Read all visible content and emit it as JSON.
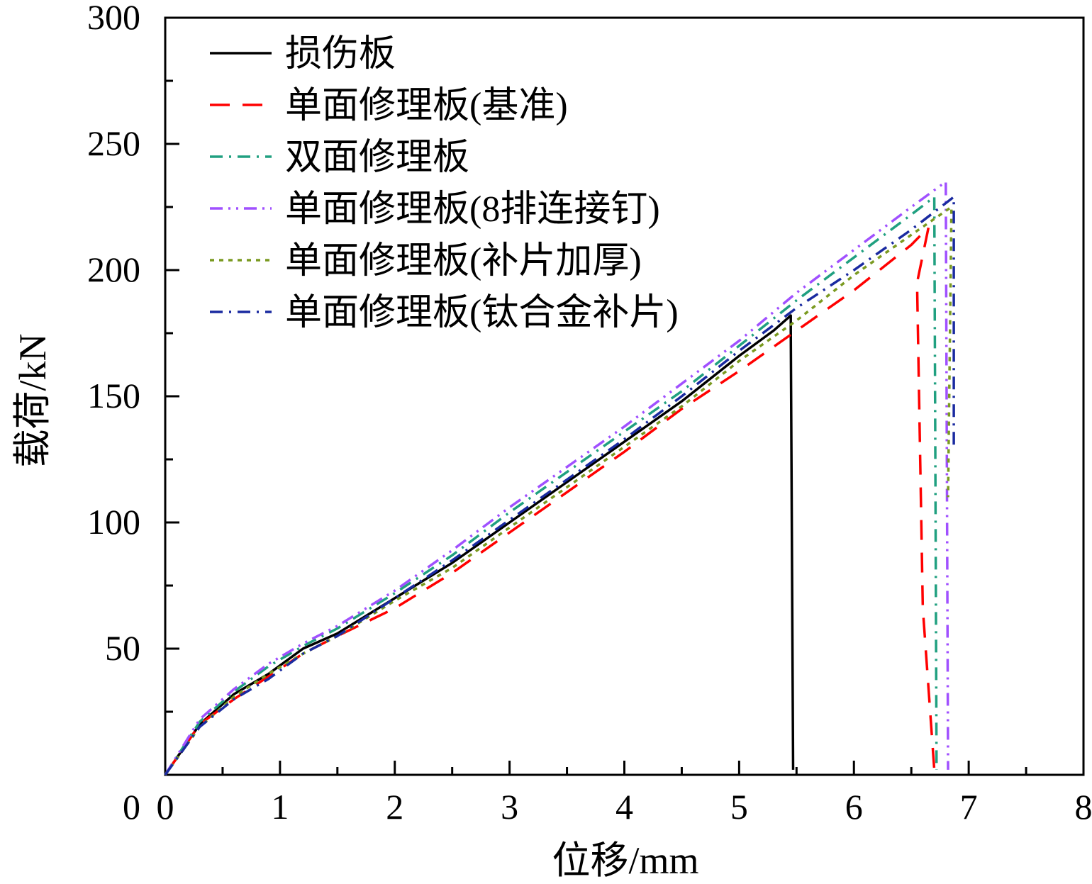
{
  "chart_data": {
    "type": "line",
    "title": "",
    "xlabel": "位移/mm",
    "ylabel": "载荷/kN",
    "xlim": [
      0,
      8
    ],
    "ylim": [
      0,
      300
    ],
    "xticks": [
      0,
      1,
      2,
      3,
      4,
      5,
      6,
      7,
      8
    ],
    "yticks": [
      50,
      100,
      150,
      200,
      250,
      300
    ],
    "x_tick_labels": [
      "0",
      "1",
      "2",
      "3",
      "4",
      "5",
      "6",
      "7",
      "8"
    ],
    "y_tick_labels": [
      "50",
      "100",
      "150",
      "200",
      "250",
      "300"
    ],
    "grid": false,
    "legend_position": "top-left",
    "series": [
      {
        "name": "损伤板",
        "color": "#000000",
        "dash": "solid",
        "x": [
          0,
          0.3,
          0.6,
          0.9,
          1.2,
          1.5,
          2.0,
          2.5,
          3.0,
          3.5,
          4.0,
          4.5,
          5.0,
          5.3,
          5.45,
          5.45,
          5.47
        ],
        "y": [
          0,
          20,
          32,
          40,
          50,
          56,
          70,
          84,
          100,
          116,
          132,
          148,
          166,
          176,
          182,
          176,
          2
        ]
      },
      {
        "name": "单面修理板(基准)",
        "color": "#ff0000",
        "dash": "long-dash",
        "x": [
          0,
          0.3,
          0.6,
          0.9,
          1.2,
          1.5,
          2.0,
          2.5,
          3.0,
          3.5,
          4.0,
          4.5,
          5.0,
          5.5,
          6.0,
          6.5,
          6.65,
          6.55,
          6.6,
          6.7
        ],
        "y": [
          0,
          20,
          30,
          39,
          48,
          55,
          66,
          80,
          96,
          112,
          128,
          145,
          160,
          176,
          192,
          210,
          217,
          195,
          66,
          2
        ]
      },
      {
        "name": "双面修理板",
        "color": "#20a080",
        "dash": "dash-dot",
        "x": [
          0,
          0.3,
          0.6,
          0.9,
          1.2,
          1.5,
          2.0,
          2.5,
          3.0,
          3.5,
          4.0,
          4.5,
          5.0,
          5.5,
          6.0,
          6.5,
          6.7,
          6.72
        ],
        "y": [
          0,
          21,
          33,
          43,
          51,
          58,
          72,
          87,
          104,
          120,
          136,
          152,
          170,
          188,
          205,
          222,
          229,
          2
        ]
      },
      {
        "name": "单面修理板(8排连接钉)",
        "color": "#a050ff",
        "dash": "dash-dot-dot",
        "x": [
          0,
          0.3,
          0.6,
          0.9,
          1.2,
          1.5,
          2.0,
          2.5,
          3.0,
          3.5,
          4.0,
          4.5,
          5.0,
          5.5,
          6.0,
          6.5,
          6.8,
          6.82
        ],
        "y": [
          0,
          22,
          34,
          44,
          52,
          59,
          73,
          89,
          106,
          122,
          138,
          155,
          172,
          191,
          208,
          225,
          235,
          2
        ]
      },
      {
        "name": "单面修理板(补片加厚)",
        "color": "#7a9a20",
        "dash": "dotted",
        "x": [
          0,
          0.3,
          0.6,
          0.9,
          1.2,
          1.5,
          2.0,
          2.5,
          3.0,
          3.5,
          4.0,
          4.5,
          5.0,
          5.5,
          6.0,
          6.5,
          6.85,
          6.82
        ],
        "y": [
          0,
          19,
          31,
          40,
          48,
          55,
          69,
          82,
          98,
          114,
          130,
          146,
          164,
          180,
          198,
          214,
          225,
          110
        ]
      },
      {
        "name": "单面修理板(钛合金补片)",
        "color": "#1a2aa0",
        "dash": "dash-dot",
        "x": [
          0,
          0.3,
          0.6,
          0.9,
          1.2,
          1.5,
          2.0,
          2.5,
          3.0,
          3.5,
          4.0,
          4.5,
          5.0,
          5.5,
          6.0,
          6.5,
          6.87,
          6.87,
          6.9
        ],
        "y": [
          0,
          19,
          30,
          38,
          48,
          55,
          70,
          85,
          101,
          117,
          133,
          150,
          168,
          185,
          200,
          216,
          229,
          130,
          130
        ]
      }
    ]
  }
}
